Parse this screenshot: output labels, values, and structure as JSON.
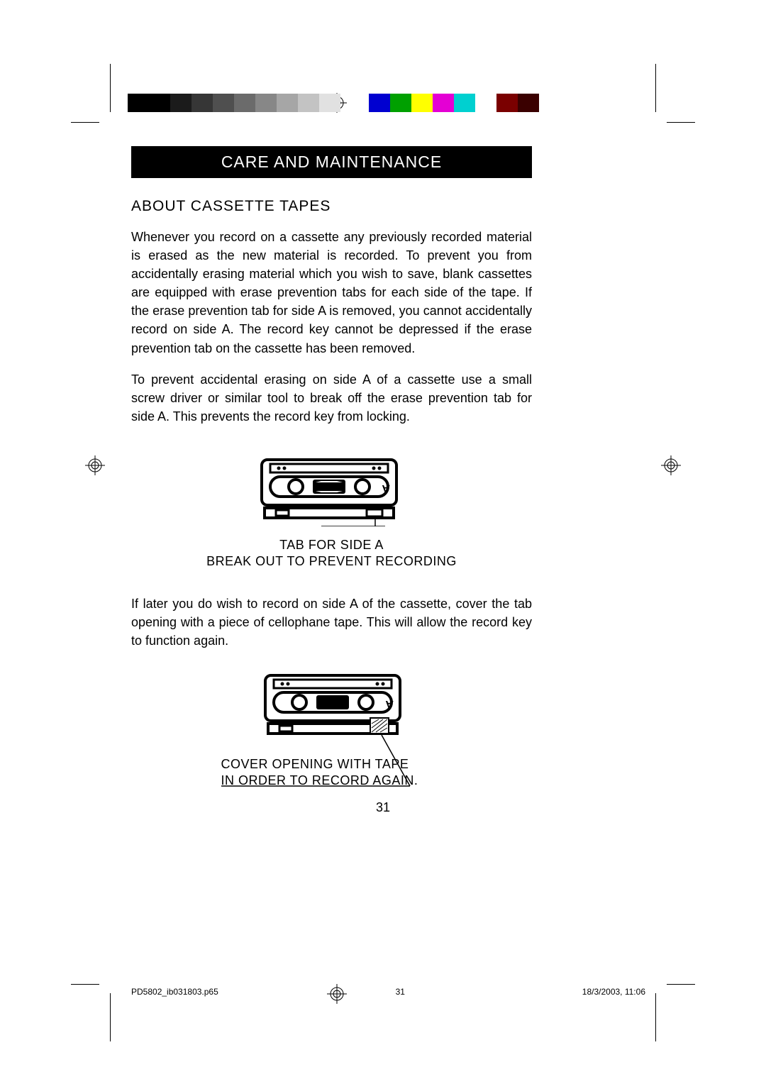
{
  "gray_swatches": [
    "#000000",
    "#000000",
    "#1b1b1b",
    "#363636",
    "#4f4f4f",
    "#6b6b6b",
    "#878787",
    "#a6a6a6",
    "#c3c3c3",
    "#e1e1e1"
  ],
  "color_swatches": [
    "#0000d0",
    "#00a000",
    "#ffff00",
    "#e400d4",
    "#00d0d0",
    "#ffffff",
    "#7a0000",
    "#3a0000"
  ],
  "title": "CARE AND MAINTENANCE",
  "section_heading": "ABOUT CASSETTE TAPES",
  "para1": "Whenever you record on a cassette any previously recorded material is erased as the new material is recorded. To prevent you from accidentally erasing material which you wish to save, blank cassettes are equipped with erase prevention tabs for each side of the tape. If the erase prevention tab for side A is removed, you cannot accidentally record on side A. The record key cannot be depressed if the erase prevention tab on the cassette has been removed.",
  "para2": "To prevent accidental erasing on side A of a cassette use a small screw driver or similar tool to break off the erase prevention tab for side A. This prevents the record key from locking.",
  "caption1_l1": "TAB FOR SIDE A",
  "caption1_l2": "BREAK OUT TO PREVENT RECORDING",
  "para3": "If later you do wish to record on side A of the cassette, cover the tab opening with a piece of cellophane tape. This will allow the record key to function again.",
  "caption2_l1": "COVER OPENING WITH TAPE",
  "caption2_l2": "IN ORDER TO RECORD AGAIN.",
  "page_number": "31",
  "footer_file": "PD5802_ib031803.p65",
  "footer_page": "31",
  "footer_date": "18/3/2003, 11:06"
}
